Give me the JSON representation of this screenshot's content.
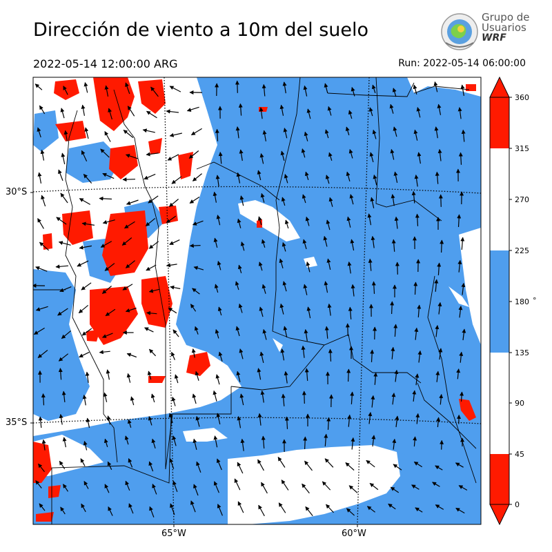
{
  "title": "Dirección de viento a 10m del suelo",
  "valid_time": "2022-05-14 12:00:00 ARG",
  "run_time": "Run: 2022-05-14 06:00:00",
  "logo": {
    "line1": "Grupo de",
    "line2": "Usuarios",
    "line3": "WRF"
  },
  "colors": {
    "red": "#ff1a00",
    "blue": "#4f9eee",
    "white": "#ffffff",
    "border": "#000000"
  },
  "colorbar": {
    "unit": "°",
    "ticks": [
      "360",
      "315",
      "270",
      "225",
      "180",
      "135",
      "90",
      "45",
      "0"
    ],
    "bins": [
      {
        "from": 315,
        "to": 360,
        "color": "red"
      },
      {
        "from": 225,
        "to": 315,
        "color": "white"
      },
      {
        "from": 135,
        "to": 225,
        "color": "blue"
      },
      {
        "from": 45,
        "to": 135,
        "color": "white"
      },
      {
        "from": 0,
        "to": 45,
        "color": "red"
      }
    ]
  },
  "axes": {
    "lat_labels": [
      "30°S",
      "35°S"
    ],
    "lon_labels": [
      "65°W",
      "60°W"
    ]
  }
}
